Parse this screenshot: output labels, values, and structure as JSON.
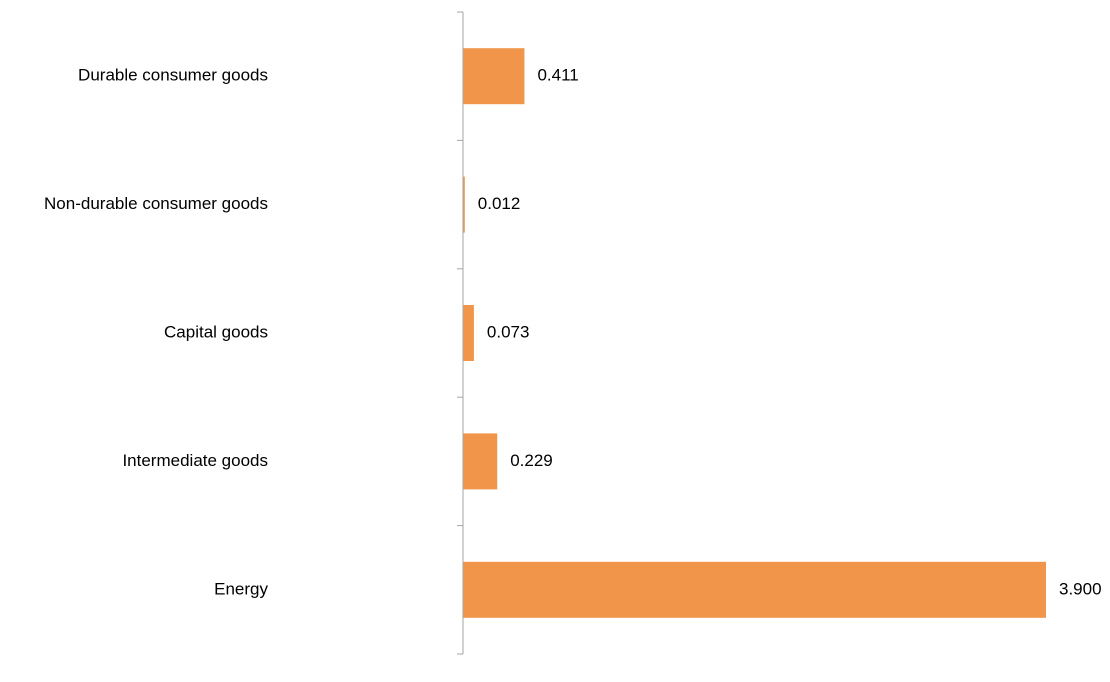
{
  "chart_data": {
    "type": "bar",
    "orientation": "horizontal",
    "categories": [
      "Durable consumer goods",
      "Non-durable consumer goods",
      "Capital goods",
      "Intermediate goods",
      "Energy"
    ],
    "values": [
      0.411,
      0.012,
      0.073,
      0.229,
      3.9
    ],
    "value_labels": [
      "0.411",
      "0.012",
      "0.073",
      "0.229",
      "3.900"
    ],
    "xlim": [
      0,
      3.9
    ],
    "grid": false,
    "legend": "none",
    "bar_color": "#f0954a",
    "axis_color": "#a6a6a6"
  }
}
